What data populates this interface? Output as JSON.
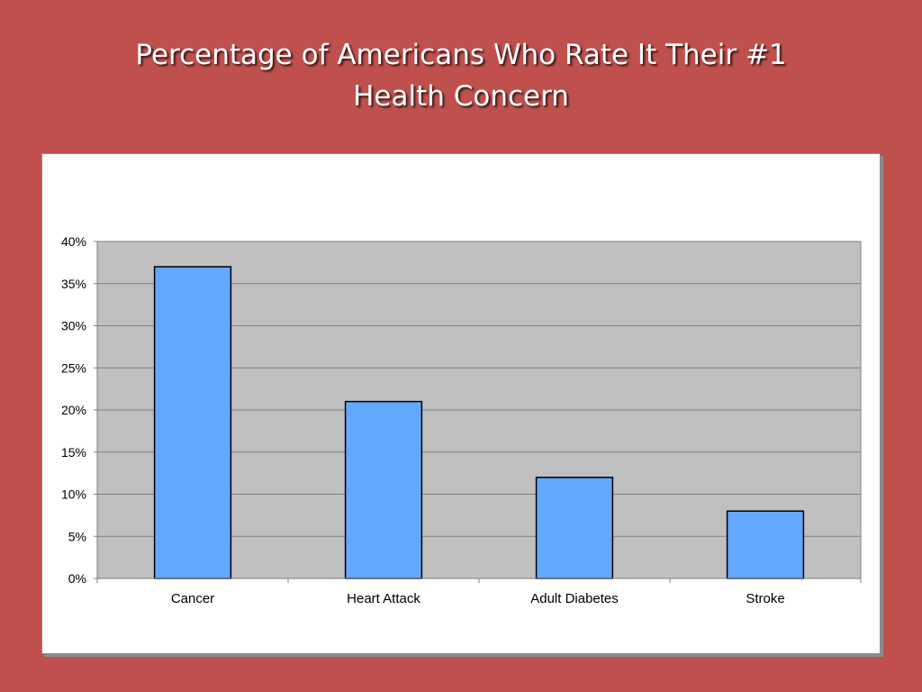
{
  "slide": {
    "title_line1": "Percentage of Americans Who Rate It Their #1",
    "title_line2": "Health Concern"
  },
  "colors": {
    "slide_background": "#c0504d",
    "plot_background": "#c0c0c0",
    "bar_fill": "#63a8ff",
    "gridline": "#808080"
  },
  "chart_data": {
    "type": "bar",
    "title": "",
    "xlabel": "",
    "ylabel": "",
    "categories": [
      "Cancer",
      "Heart Attack",
      "Adult Diabetes",
      "Stroke"
    ],
    "values": [
      37,
      21,
      12,
      8
    ],
    "unit": "%",
    "ylim": [
      0,
      40
    ],
    "yticks": [
      0,
      5,
      10,
      15,
      20,
      25,
      30,
      35,
      40
    ],
    "ytick_labels": [
      "0%",
      "5%",
      "10%",
      "15%",
      "20%",
      "25%",
      "30%",
      "35%",
      "40%"
    ],
    "grid": true,
    "legend": "none"
  }
}
